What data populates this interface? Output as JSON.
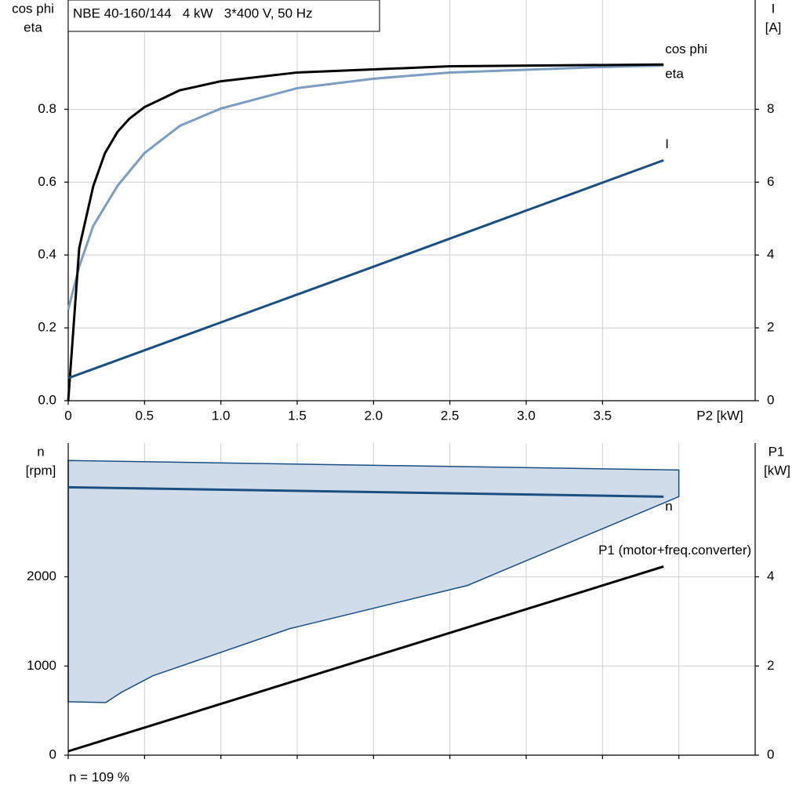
{
  "chart_data": [
    {
      "type": "line",
      "title": "NBE 40-160/144   4 kW   3*400 V, 50 Hz",
      "ylabel": [
        "cos phi",
        "eta"
      ],
      "y2label": [
        "I",
        "[A]"
      ],
      "xlabel": "P2 [kW]",
      "xlim": [
        0,
        4.5
      ],
      "xticks": [
        0,
        0.5,
        {
          "value": 1,
          "label": "1.0"
        },
        1.5,
        {
          "value": 2,
          "label": "2.0"
        },
        2.5,
        {
          "value": 3,
          "label": "3.0"
        },
        3.5
      ],
      "ylim": [
        0,
        1.1
      ],
      "yticks": [
        {
          "value": 0,
          "label": "0.0"
        },
        0.2,
        0.4,
        0.6,
        0.8
      ],
      "y2lim": [
        0,
        11
      ],
      "y2ticks": [
        0,
        2,
        4,
        6,
        8
      ],
      "grid": true,
      "series": [
        {
          "name": "cos phi",
          "color": "#7b9dc2",
          "x": [
            0,
            0.072,
            0.164,
            0.323,
            0.5,
            0.733,
            1.0,
            1.5,
            2.0,
            2.5,
            3.5,
            3.9
          ],
          "values": [
            0.25,
            0.368,
            0.48,
            0.59,
            0.68,
            0.755,
            0.802,
            0.858,
            0.884,
            0.901,
            0.916,
            0.92
          ]
        },
        {
          "name": "eta",
          "color": "#000000",
          "x": [
            0,
            0.072,
            0.164,
            0.24,
            0.323,
            0.4,
            0.5,
            0.73,
            1.0,
            1.5,
            2.5,
            3.9
          ],
          "values": [
            0,
            0.419,
            0.589,
            0.679,
            0.738,
            0.774,
            0.806,
            0.852,
            0.877,
            0.901,
            0.918,
            0.923
          ]
        },
        {
          "name": "I",
          "color": "#1a4f84",
          "axis": "y2",
          "x": [
            0,
            1,
            2,
            3,
            3.9
          ],
          "values": [
            0.62,
            2.15,
            3.68,
            5.22,
            6.6
          ]
        }
      ]
    },
    {
      "type": "line",
      "ylabel": [
        "n",
        "[rpm]"
      ],
      "y2label": [
        "P1",
        "[kW]"
      ],
      "annotation": "n = 109 %",
      "xlim": [
        0,
        4.5
      ],
      "xticks": [
        0,
        0.5,
        1,
        1.5,
        2,
        2.5,
        3,
        3.5,
        4
      ],
      "ylim": [
        0,
        3500
      ],
      "yticks": [
        0,
        1000,
        2000
      ],
      "y2lim": [
        0,
        7
      ],
      "y2ticks": [
        0,
        2,
        4
      ],
      "grid": true,
      "band": {
        "color": "#d0dce9",
        "edge_color": "#1a4f84",
        "x_upper": [
          0,
          4.0
        ],
        "upper": [
          3304,
          3198
        ],
        "x": [
          0,
          0.246,
          0.349,
          0.554,
          1.451,
          2.615,
          4.0
        ],
        "lower": [
          599,
          590,
          705,
          890,
          1419,
          1903,
          2899
        ]
      },
      "series": [
        {
          "name": "n",
          "color": "#1a4f84",
          "x": [
            0,
            3.9
          ],
          "values": [
            3004,
            2899
          ]
        },
        {
          "name": "P1 (motor+freq.converter)",
          "color": "#000000",
          "axis": "y2",
          "x": [
            0,
            3.9
          ],
          "values": [
            0.088,
            4.23
          ]
        }
      ]
    }
  ]
}
